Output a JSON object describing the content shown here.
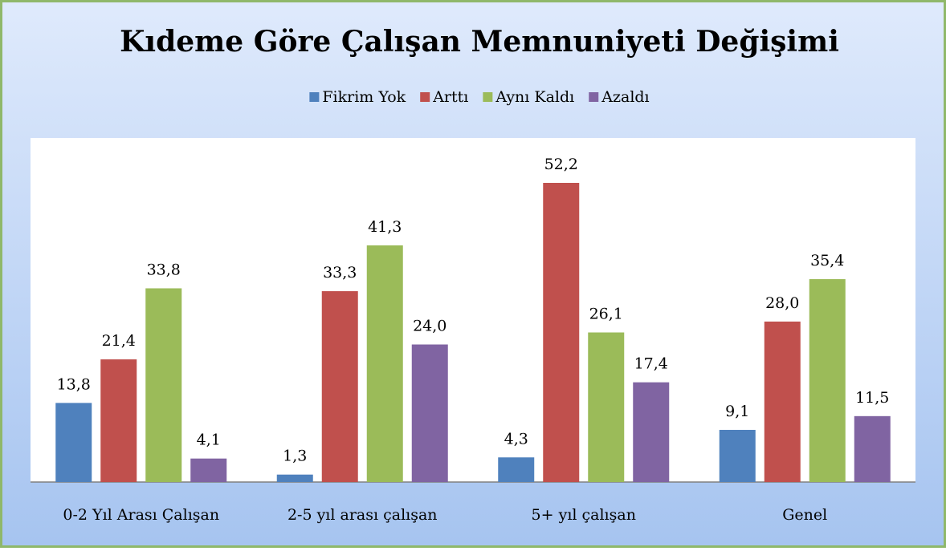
{
  "chart_data": {
    "type": "bar",
    "title": "Kıdeme Göre Çalışan Memnuniyeti Değişimi",
    "categories": [
      "0-2 Yıl Arası Çalışan",
      "2-5 yıl arası çalışan",
      "5+ yıl çalışan",
      "Genel"
    ],
    "series": [
      {
        "name": "Fikrim Yok",
        "color": "#4f81bd",
        "values": [
          13.8,
          1.3,
          4.3,
          9.1
        ],
        "value_labels": [
          "13,8",
          "1,3",
          "4,3",
          "9,1"
        ]
      },
      {
        "name": "Arttı",
        "color": "#c0504d",
        "values": [
          21.4,
          33.3,
          52.2,
          28.0
        ],
        "value_labels": [
          "21,4",
          "33,3",
          "52,2",
          "28,0"
        ]
      },
      {
        "name": "Aynı Kaldı",
        "color": "#9bbb59",
        "values": [
          33.8,
          41.3,
          26.1,
          35.4
        ],
        "value_labels": [
          "33,8",
          "41,3",
          "26,1",
          "35,4"
        ]
      },
      {
        "name": "Azaldı",
        "color": "#8064a2",
        "values": [
          4.1,
          24.0,
          17.4,
          11.5
        ],
        "value_labels": [
          "4,1",
          "24,0",
          "17,4",
          "11,5"
        ]
      }
    ],
    "legend": "top"
  }
}
